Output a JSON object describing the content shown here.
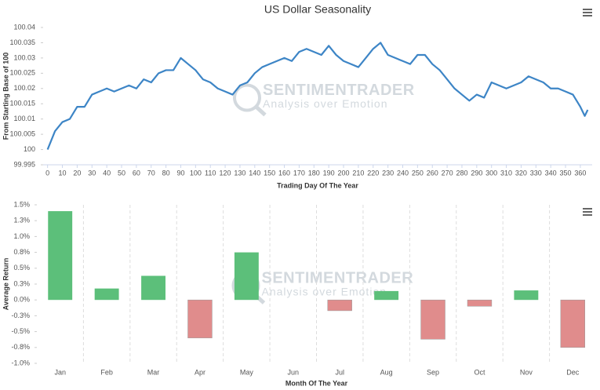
{
  "chart_data": [
    {
      "type": "line",
      "title": "US Dollar Seasonality",
      "x_label": "Trading Day Of The Year",
      "y_label": "From Starting Base of 100",
      "watermark": {
        "name": "SENTIMENTRADER",
        "tagline": "Analysis over Emotion"
      },
      "color": "#3d85c6",
      "x": [
        0,
        5,
        10,
        15,
        20,
        25,
        30,
        35,
        40,
        45,
        50,
        55,
        60,
        65,
        70,
        75,
        80,
        85,
        90,
        95,
        100,
        105,
        110,
        115,
        120,
        125,
        130,
        135,
        140,
        145,
        150,
        155,
        160,
        165,
        170,
        175,
        180,
        185,
        190,
        195,
        200,
        205,
        210,
        215,
        220,
        225,
        230,
        235,
        240,
        245,
        250,
        255,
        260,
        265,
        270,
        275,
        280,
        285,
        290,
        295,
        300,
        305,
        310,
        315,
        320,
        325,
        330,
        335,
        340,
        345,
        350,
        355,
        360,
        363,
        365
      ],
      "values": [
        100.0,
        100.006,
        100.009,
        100.01,
        100.014,
        100.014,
        100.018,
        100.019,
        100.02,
        100.019,
        100.02,
        100.021,
        100.02,
        100.023,
        100.022,
        100.025,
        100.026,
        100.026,
        100.03,
        100.028,
        100.026,
        100.023,
        100.022,
        100.02,
        100.019,
        100.018,
        100.021,
        100.022,
        100.025,
        100.027,
        100.028,
        100.029,
        100.03,
        100.029,
        100.032,
        100.033,
        100.032,
        100.031,
        100.034,
        100.031,
        100.029,
        100.028,
        100.027,
        100.03,
        100.033,
        100.035,
        100.031,
        100.03,
        100.029,
        100.028,
        100.031,
        100.031,
        100.028,
        100.026,
        100.023,
        100.02,
        100.018,
        100.016,
        100.018,
        100.017,
        100.022,
        100.021,
        100.02,
        100.021,
        100.022,
        100.024,
        100.023,
        100.022,
        100.02,
        100.02,
        100.019,
        100.018,
        100.014,
        100.011,
        100.013
      ],
      "xlim": [
        -3,
        368
      ],
      "xticks": [
        0,
        10,
        20,
        30,
        40,
        50,
        60,
        70,
        80,
        90,
        100,
        110,
        120,
        130,
        140,
        150,
        160,
        170,
        180,
        190,
        200,
        210,
        220,
        230,
        240,
        250,
        260,
        270,
        280,
        290,
        300,
        310,
        320,
        330,
        340,
        350,
        360
      ],
      "ylim": [
        99.995,
        100.04
      ],
      "yticks": [
        99.995,
        100,
        100.005,
        100.01,
        100.015,
        100.02,
        100.025,
        100.03,
        100.035,
        100.04
      ],
      "grid": false
    },
    {
      "type": "bar",
      "x_label": "Month Of The Year",
      "y_label": "Average Return",
      "watermark": {
        "name": "SENTIMENTRADER",
        "tagline": "Analysis over Emotion"
      },
      "categories": [
        "Jan",
        "Feb",
        "Mar",
        "Apr",
        "May",
        "Jun",
        "Jul",
        "Aug",
        "Sep",
        "Oct",
        "Nov",
        "Dec"
      ],
      "values": [
        1.4,
        0.18,
        0.38,
        -0.6,
        0.75,
        0,
        -0.17,
        0.14,
        -0.62,
        -0.1,
        0.15,
        -0.75
      ],
      "positive_color": "#5cbf7a",
      "negative_color": "#e08c8c",
      "ylim": [
        -1,
        1.5
      ],
      "yticks": [
        {
          "value": 1.5,
          "label": "1.5%"
        },
        {
          "value": 1.25,
          "label": "1.3%"
        },
        {
          "value": 1.0,
          "label": "1.0%"
        },
        {
          "value": 0.75,
          "label": "0.8%"
        },
        {
          "value": 0.5,
          "label": "0.5%"
        },
        {
          "value": 0.25,
          "label": "0.3%"
        },
        {
          "value": 0,
          "label": "0.0%"
        },
        {
          "value": -0.25,
          "label": "-0.3%"
        },
        {
          "value": -0.5,
          "label": "-0.5%"
        },
        {
          "value": -0.75,
          "label": "-0.8%"
        },
        {
          "value": -1,
          "label": "-1.0%"
        }
      ],
      "grid": false
    }
  ]
}
